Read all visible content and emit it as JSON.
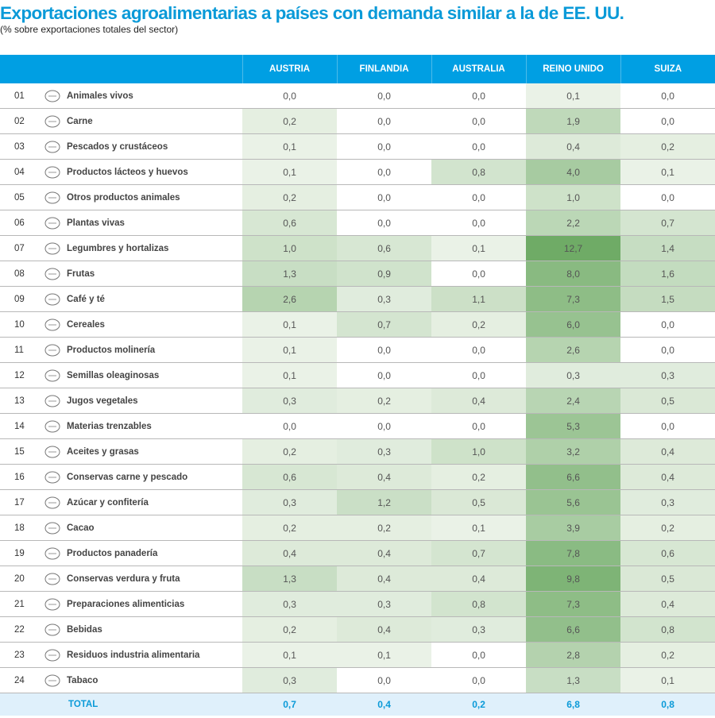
{
  "header": {
    "title": "Exportaciones agroalimentarias a países con demanda similar a la de EE. UU.",
    "subtitle": "(% sobre exportaciones totales del sector)"
  },
  "chart_data": {
    "type": "heatmap",
    "columns": [
      "AUSTRIA",
      "FINLANDIA",
      "AUSTRALIA",
      "REINO UNIDO",
      "SUIZA"
    ],
    "color_scale": {
      "low": "#ffffff",
      "high": "#6fab66"
    },
    "header_color": "#009fe3",
    "rows": [
      {
        "num": "01",
        "label": "Animales vivos",
        "icon": "pig-icon",
        "values": [
          "0,0",
          "0,0",
          "0,0",
          "0,1",
          "0,0"
        ]
      },
      {
        "num": "02",
        "label": "Carne",
        "icon": "meat-icon",
        "values": [
          "0,2",
          "0,0",
          "0,0",
          "1,9",
          "0,0"
        ]
      },
      {
        "num": "03",
        "label": "Pescados y crustáceos",
        "icon": "fish-icon",
        "values": [
          "0,1",
          "0,0",
          "0,0",
          "0,4",
          "0,2"
        ]
      },
      {
        "num": "04",
        "label": "Productos lácteos y huevos",
        "icon": "milk-bottle-icon",
        "values": [
          "0,1",
          "0,0",
          "0,8",
          "4,0",
          "0,1"
        ]
      },
      {
        "num": "05",
        "label": "Otros productos animales",
        "icon": "tin-icon",
        "values": [
          "0,2",
          "0,0",
          "0,0",
          "1,0",
          "0,0"
        ]
      },
      {
        "num": "06",
        "label": "Plantas vivas",
        "icon": "sprout-icon",
        "values": [
          "0,6",
          "0,0",
          "0,0",
          "2,2",
          "0,7"
        ]
      },
      {
        "num": "07",
        "label": "Legumbres y hortalizas",
        "icon": "vegetables-icon",
        "values": [
          "1,0",
          "0,6",
          "0,1",
          "12,7",
          "1,4"
        ]
      },
      {
        "num": "08",
        "label": "Frutas",
        "icon": "apple-icon",
        "values": [
          "1,3",
          "0,9",
          "0,0",
          "8,0",
          "1,6"
        ]
      },
      {
        "num": "09",
        "label": "Café y té",
        "icon": "coffee-cup-icon",
        "values": [
          "2,6",
          "0,3",
          "1,1",
          "7,3",
          "1,5"
        ]
      },
      {
        "num": "10",
        "label": "Cereales",
        "icon": "wheat-icon",
        "values": [
          "0,1",
          "0,7",
          "0,2",
          "6,0",
          "0,0"
        ]
      },
      {
        "num": "11",
        "label": "Productos molinería",
        "icon": "mill-icon",
        "values": [
          "0,1",
          "0,0",
          "0,0",
          "2,6",
          "0,0"
        ]
      },
      {
        "num": "12",
        "label": "Semillas oleaginosas",
        "icon": "sunflower-icon",
        "values": [
          "0,1",
          "0,0",
          "0,0",
          "0,3",
          "0,3"
        ]
      },
      {
        "num": "13",
        "label": "Jugos vegetales",
        "icon": "juice-glass-icon",
        "values": [
          "0,3",
          "0,2",
          "0,4",
          "2,4",
          "0,5"
        ]
      },
      {
        "num": "14",
        "label": "Materias trenzables",
        "icon": "bamboo-icon",
        "values": [
          "0,0",
          "0,0",
          "0,0",
          "5,3",
          "0,0"
        ]
      },
      {
        "num": "15",
        "label": "Aceites y grasas",
        "icon": "oil-bottle-icon",
        "values": [
          "0,2",
          "0,3",
          "1,0",
          "3,2",
          "0,4"
        ]
      },
      {
        "num": "16",
        "label": "Conservas carne y pescado",
        "icon": "preserves-icon",
        "values": [
          "0,6",
          "0,4",
          "0,2",
          "6,6",
          "0,4"
        ]
      },
      {
        "num": "17",
        "label": "Azúcar y confitería",
        "icon": "candy-icon",
        "values": [
          "0,3",
          "1,2",
          "0,5",
          "5,6",
          "0,3"
        ]
      },
      {
        "num": "18",
        "label": "Cacao",
        "icon": "cacao-pod-icon",
        "values": [
          "0,2",
          "0,2",
          "0,1",
          "3,9",
          "0,2"
        ]
      },
      {
        "num": "19",
        "label": "Productos panadería",
        "icon": "croissant-icon",
        "values": [
          "0,4",
          "0,4",
          "0,7",
          "7,8",
          "0,6"
        ]
      },
      {
        "num": "20",
        "label": "Conservas verdura y fruta",
        "icon": "jar-icon",
        "values": [
          "1,3",
          "0,4",
          "0,4",
          "9,8",
          "0,5"
        ]
      },
      {
        "num": "21",
        "label": "Preparaciones alimenticias",
        "icon": "package-icon",
        "values": [
          "0,3",
          "0,3",
          "0,8",
          "7,3",
          "0,4"
        ]
      },
      {
        "num": "22",
        "label": "Bebidas",
        "icon": "wine-bottle-icon",
        "values": [
          "0,2",
          "0,4",
          "0,3",
          "6,6",
          "0,8"
        ]
      },
      {
        "num": "23",
        "label": "Residuos industria alimentaria",
        "icon": "sack-icon",
        "values": [
          "0,1",
          "0,1",
          "0,0",
          "2,8",
          "0,2"
        ]
      },
      {
        "num": "24",
        "label": "Tabaco",
        "icon": "cigarette-icon",
        "values": [
          "0,3",
          "0,0",
          "0,0",
          "1,3",
          "0,1"
        ]
      }
    ],
    "total": {
      "label": "TOTAL",
      "values": [
        "0,7",
        "0,4",
        "0,2",
        "6,8",
        "0,8"
      ]
    }
  }
}
